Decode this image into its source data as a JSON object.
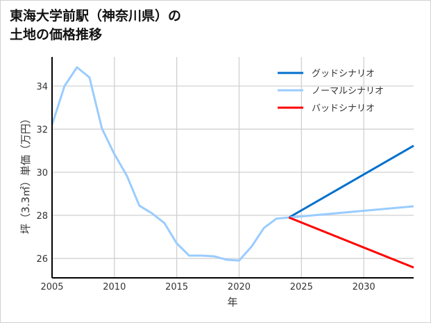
{
  "chart_data": {
    "type": "line",
    "title_lines": [
      "東海大学前駅（神奈川県）の",
      "土地の価格推移"
    ],
    "xlabel": "年",
    "ylabel": "坪（3.3㎡）単価（万円）",
    "xlim": [
      2005,
      2034
    ],
    "ylim": [
      25.1,
      35.35
    ],
    "xticks": [
      2005,
      2010,
      2015,
      2020,
      2025,
      2030
    ],
    "yticks": [
      26,
      28,
      30,
      32,
      34
    ],
    "grid": true,
    "legend_position": "top-right",
    "history": {
      "x": [
        2005,
        2006,
        2007,
        2008,
        2009,
        2010,
        2011,
        2012,
        2013,
        2014,
        2015,
        2016,
        2017,
        2018,
        2019,
        2020,
        2021,
        2022,
        2023,
        2024
      ],
      "y": [
        32.2,
        34.0,
        34.87,
        34.4,
        32.03,
        30.84,
        29.84,
        28.45,
        28.1,
        27.65,
        26.7,
        26.13,
        26.13,
        26.1,
        25.94,
        25.9,
        26.55,
        27.42,
        27.85,
        27.9
      ],
      "color": "#99ccff"
    },
    "series": [
      {
        "name": "グッドシナリオ",
        "x": [
          2024,
          2034
        ],
        "y": [
          27.9,
          31.23
        ],
        "color": "#0070cc"
      },
      {
        "name": "ノーマルシナリオ",
        "x": [
          2024,
          2034
        ],
        "y": [
          27.9,
          28.42
        ],
        "color": "#99ccff"
      },
      {
        "name": "バッドシナリオ",
        "x": [
          2024,
          2034
        ],
        "y": [
          27.9,
          25.58
        ],
        "color": "#ff0000"
      }
    ]
  }
}
